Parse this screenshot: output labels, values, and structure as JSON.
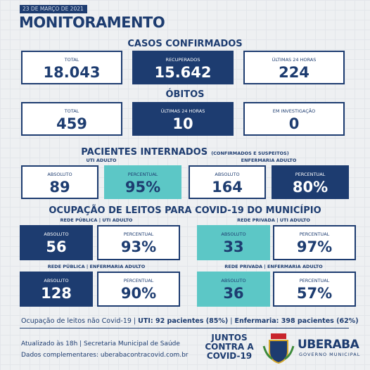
{
  "header": {
    "date": "23 DE MARÇO DE 2021",
    "title": "MONITORAMENTO"
  },
  "confirmed": {
    "title": "CASOS CONFIRMADOS",
    "boxes": [
      {
        "label": "TOTAL",
        "value": "18.043",
        "fill": "#ffffff"
      },
      {
        "label": "RECUPERADOS",
        "value": "15.642",
        "fill": "#1d3c70"
      },
      {
        "label": "ÚLTIMAS 24 HORAS",
        "value": "224",
        "fill": "#ffffff"
      }
    ]
  },
  "deaths": {
    "title": "ÓBITOS",
    "boxes": [
      {
        "label": "TOTAL",
        "value": "459",
        "fill": "#ffffff"
      },
      {
        "label": "ÚLTIMAS 24 HORAS",
        "value": "10",
        "fill": "#1d3c70"
      },
      {
        "label": "EM INVESTIGAÇÃO",
        "value": "0",
        "fill": "#ffffff"
      }
    ]
  },
  "hospitalized": {
    "title": "PACIENTES INTERNADOS",
    "note": "(CONFIRMADOS E SUSPEITOS)",
    "groups": [
      {
        "label": "UTI ADULTO",
        "boxes": [
          {
            "label": "ABSOLUTO",
            "value": "89",
            "fill": "#ffffff"
          },
          {
            "label": "PERCENTUAL",
            "value": "95%",
            "fill": "#5cc7c6"
          }
        ]
      },
      {
        "label": "ENFERMARIA ADULTO",
        "boxes": [
          {
            "label": "ABSOLUTO",
            "value": "164",
            "fill": "#ffffff"
          },
          {
            "label": "PERCENTUAL",
            "value": "80%",
            "fill": "#1d3c70"
          }
        ]
      }
    ]
  },
  "occupancy": {
    "title": "OCUPAÇÃO DE LEITOS PARA COVID-19 DO MUNICÍPIO",
    "groups": [
      {
        "label": "REDE PÚBLICA | UTI ADULTO",
        "boxes": [
          {
            "label": "ABSOLUTO",
            "value": "56",
            "fill": "#1d3c70"
          },
          {
            "label": "PERCENTUAL",
            "value": "93%",
            "fill": "#ffffff"
          }
        ]
      },
      {
        "label": "REDE PRIVADA | UTI ADULTO",
        "boxes": [
          {
            "label": "ABSOLUTO",
            "value": "33",
            "fill": "#5cc7c6"
          },
          {
            "label": "PERCENTUAL",
            "value": "97%",
            "fill": "#ffffff"
          }
        ]
      },
      {
        "label": "REDE PÚBLICA | ENFERMARIA ADULTO",
        "boxes": [
          {
            "label": "ABSOLUTO",
            "value": "128",
            "fill": "#1d3c70"
          },
          {
            "label": "PERCENTUAL",
            "value": "90%",
            "fill": "#ffffff"
          }
        ]
      },
      {
        "label": "REDE PRIVADA | ENFERMARIA ADULTO",
        "boxes": [
          {
            "label": "ABSOLUTO",
            "value": "36",
            "fill": "#5cc7c6"
          },
          {
            "label": "PERCENTUAL",
            "value": "57%",
            "fill": "#ffffff"
          }
        ]
      }
    ]
  },
  "footer": {
    "non_covid": [
      "Ocupação de leitos não Covid-19 | ",
      "UTI: 92 pacientes (85%)",
      " | ",
      "Enfermaria: 398 pacientes (62%)"
    ],
    "updated": "Atualizado às 18h | Secretaria Municipal de Saúde",
    "site": "Dados complementares: uberabacontracovid.com.br",
    "campaign": [
      "JUNTOS",
      "CONTRA A",
      "COVID-19"
    ],
    "logo": "UBERABA",
    "logo_sub": "GOVERNO MUNICIPAL"
  }
}
